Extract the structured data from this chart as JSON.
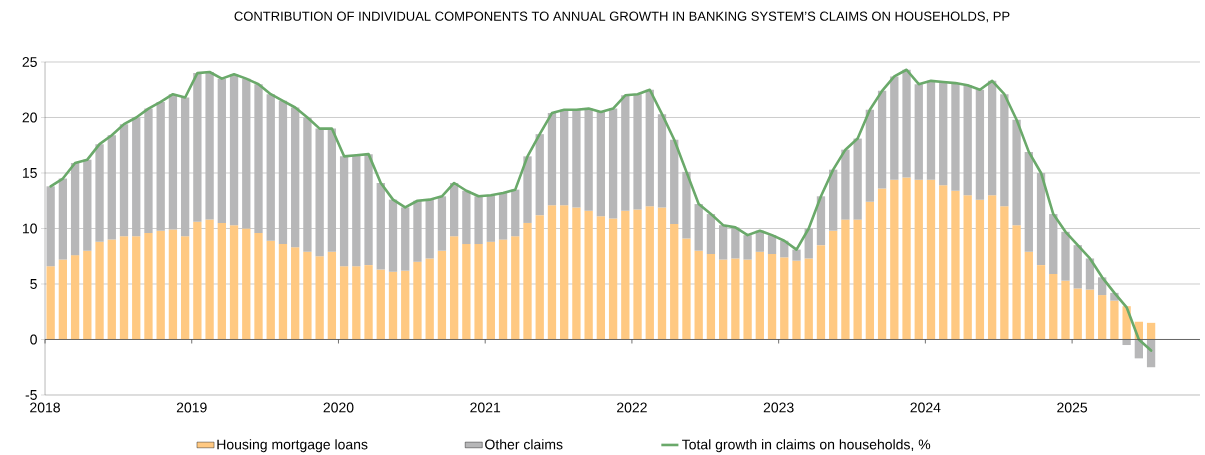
{
  "chart_data": {
    "type": "bar",
    "title": "CONTRIBUTION OF INDIVIDUAL COMPONENTS TO ANNUAL GROWTH IN BANKING SYSTEM’S CLAIMS ON HOUSEHOLDS, PP",
    "stacked": true,
    "grid": "y",
    "legend": "bottom",
    "x": [
      "2018-01-15",
      "2018-02-15",
      "2018-03-15",
      "2018-04-15",
      "2018-05-15",
      "2018-06-15",
      "2018-07-15",
      "2018-08-15",
      "2018-09-15",
      "2018-10-15",
      "2018-11-15",
      "2018-12-15",
      "2019-01-15",
      "2019-02-15",
      "2019-03-15",
      "2019-04-15",
      "2019-05-15",
      "2019-06-15",
      "2019-07-15",
      "2019-08-15",
      "2019-09-15",
      "2019-10-15",
      "2019-11-15",
      "2019-12-15",
      "2020-01-15",
      "2020-02-15",
      "2020-03-15",
      "2020-04-15",
      "2020-05-15",
      "2020-06-15",
      "2020-07-15",
      "2020-08-15",
      "2020-09-15",
      "2020-10-15",
      "2020-11-15",
      "2020-12-15",
      "2021-01-15",
      "2021-02-15",
      "2021-03-15",
      "2021-04-15",
      "2021-05-15",
      "2021-06-15",
      "2021-07-15",
      "2021-08-15",
      "2021-09-15",
      "2021-10-15",
      "2021-11-15",
      "2021-12-15",
      "2022-01-15",
      "2022-02-15",
      "2022-03-15",
      "2022-04-15",
      "2022-05-15",
      "2022-06-15",
      "2022-07-15",
      "2022-08-15",
      "2022-09-15",
      "2022-10-15",
      "2022-11-15",
      "2022-12-15",
      "2023-01-15",
      "2023-02-15",
      "2023-03-15",
      "2023-04-15",
      "2023-05-15",
      "2023-06-15",
      "2023-07-15",
      "2023-08-15",
      "2023-09-15",
      "2023-10-15",
      "2023-11-15",
      "2023-12-15",
      "2024-01-15",
      "2024-02-15",
      "2024-03-15",
      "2024-04-15",
      "2024-05-15",
      "2024-06-15",
      "2024-07-15",
      "2024-08-15",
      "2024-09-15",
      "2024-10-15",
      "2024-11-15",
      "2024-12-15",
      "2025-01-15",
      "2025-02-15",
      "2025-03-15",
      "2025-04-15",
      "2025-05-15",
      "2025-06-15",
      "2025-07-15"
    ],
    "xlim": [
      "2018",
      "2025-11-15"
    ],
    "xticks": [
      {
        "value": "2018",
        "label": "2018"
      },
      {
        "value": "2019",
        "label": "2019"
      },
      {
        "value": "2020",
        "label": "2020"
      },
      {
        "value": "2021",
        "label": "2021"
      },
      {
        "value": "2022",
        "label": "2022"
      },
      {
        "value": "2023",
        "label": "2023"
      },
      {
        "value": "2024",
        "label": "2024"
      },
      {
        "value": "2025",
        "label": "2025"
      }
    ],
    "ylim": [
      -5,
      25
    ],
    "yticks": [
      -5,
      0,
      5,
      10,
      15,
      20,
      25
    ],
    "series": [
      {
        "name": "Housing mortgage loans",
        "color": "#ffc982",
        "values": [
          6.6,
          7.2,
          7.6,
          8.0,
          8.8,
          9.0,
          9.3,
          9.3,
          9.6,
          9.8,
          9.9,
          9.3,
          10.6,
          10.8,
          10.5,
          10.3,
          10.0,
          9.6,
          8.9,
          8.6,
          8.3,
          7.9,
          7.5,
          7.9,
          6.6,
          6.6,
          6.7,
          6.3,
          6.1,
          6.2,
          7.0,
          7.3,
          8.0,
          9.3,
          8.6,
          8.6,
          8.8,
          9.0,
          9.3,
          10.5,
          11.2,
          12.1,
          12.1,
          11.9,
          11.6,
          11.1,
          10.9,
          11.6,
          11.7,
          12.0,
          11.9,
          10.4,
          9.1,
          8.0,
          7.7,
          7.2,
          7.3,
          7.2,
          7.9,
          7.7,
          7.4,
          7.1,
          7.3,
          8.5,
          9.8,
          10.8,
          10.8,
          12.4,
          13.6,
          14.4,
          14.6,
          14.4,
          14.4,
          13.9,
          13.4,
          13.0,
          12.6,
          13.0,
          12.0,
          10.3,
          7.9,
          6.7,
          5.9,
          5.3,
          4.6,
          4.5,
          4.0,
          3.5,
          3.0,
          1.6,
          1.5
        ]
      },
      {
        "name": "Other claims",
        "color": "#b7b7b8",
        "values": [
          7.2,
          7.3,
          8.3,
          8.2,
          8.8,
          9.4,
          10.1,
          10.7,
          11.2,
          11.6,
          12.2,
          12.5,
          13.4,
          13.3,
          13.0,
          13.6,
          13.5,
          13.4,
          13.2,
          12.9,
          12.6,
          12.1,
          11.5,
          11.1,
          9.9,
          10.0,
          10.0,
          7.8,
          6.5,
          5.7,
          5.5,
          5.3,
          4.9,
          4.8,
          4.8,
          4.3,
          4.2,
          4.2,
          4.2,
          6.0,
          7.3,
          8.3,
          8.6,
          8.8,
          9.2,
          9.4,
          9.9,
          10.4,
          10.4,
          10.5,
          8.4,
          7.6,
          6.0,
          4.2,
          3.6,
          3.1,
          2.8,
          2.2,
          1.9,
          1.7,
          1.5,
          1.0,
          2.7,
          4.4,
          5.5,
          6.3,
          7.3,
          8.3,
          8.8,
          9.3,
          9.7,
          8.6,
          8.9,
          9.3,
          9.7,
          9.9,
          9.9,
          10.3,
          10.1,
          9.5,
          9.0,
          8.3,
          5.4,
          4.4,
          3.9,
          2.8,
          1.6,
          0.7,
          -0.5,
          -1.7,
          -2.5
        ]
      },
      {
        "name": "Total growth in claims on households, %",
        "type": "line",
        "color": "#6aa96a",
        "values": [
          13.8,
          14.5,
          15.9,
          16.2,
          17.6,
          18.4,
          19.4,
          20.0,
          20.8,
          21.4,
          22.1,
          21.8,
          24.0,
          24.1,
          23.5,
          23.9,
          23.5,
          23.0,
          22.1,
          21.5,
          20.9,
          20.0,
          19.0,
          19.0,
          16.5,
          16.6,
          16.7,
          14.1,
          12.6,
          11.9,
          12.5,
          12.6,
          12.9,
          14.1,
          13.4,
          12.9,
          13.0,
          13.2,
          13.5,
          16.5,
          18.5,
          20.4,
          20.7,
          20.7,
          20.8,
          20.5,
          20.8,
          22.0,
          22.1,
          22.5,
          20.3,
          18.0,
          15.1,
          12.2,
          11.3,
          10.3,
          10.1,
          9.4,
          9.8,
          9.4,
          8.9,
          8.1,
          10.0,
          12.9,
          15.3,
          17.1,
          18.1,
          20.7,
          22.4,
          23.7,
          24.3,
          23.0,
          23.3,
          23.2,
          23.1,
          22.9,
          22.5,
          23.3,
          22.1,
          19.8,
          16.9,
          15.0,
          11.3,
          9.7,
          8.5,
          7.3,
          5.6,
          4.2,
          2.9,
          0.0,
          -1.0
        ]
      }
    ]
  }
}
